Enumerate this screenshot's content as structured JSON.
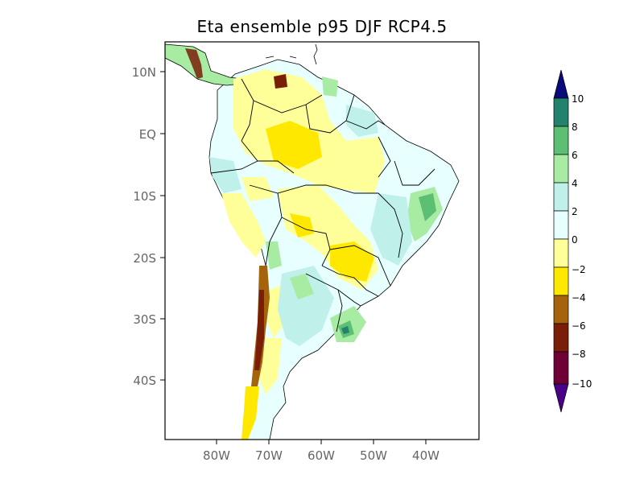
{
  "title": "Eta ensemble p95 DJF RCP4.5",
  "map": {
    "lat_ticks": [
      "10N",
      "EQ",
      "10S",
      "20S",
      "30S",
      "40S"
    ],
    "lon_ticks": [
      "80W",
      "70W",
      "60W",
      "50W",
      "40W"
    ],
    "lat_range": [
      -49.5,
      14
    ],
    "lon_range": [
      -89,
      -29
    ]
  },
  "colorbar": {
    "levels": [
      "10",
      "8",
      "6",
      "4",
      "2",
      "0",
      "−2",
      "−4",
      "−6",
      "−8",
      "−10"
    ],
    "colors": {
      "gt10": "#0a0a7a",
      "8_10": "#22826e",
      "6_8": "#5cbf73",
      "4_6": "#a8eca3",
      "2_4": "#bff0ea",
      "0_2": "#e8ffff",
      "m2_0": "#ffff99",
      "m4_m2": "#ffe800",
      "m6_m4": "#a5640c",
      "m8_m6": "#7a1e08",
      "m10_m8": "#6e0036",
      "lt_m10": "#4b0088"
    }
  },
  "legend_colors": {
    "land_dominant": "#e8ffff",
    "coastline": "#000000",
    "frame": "#000000"
  }
}
